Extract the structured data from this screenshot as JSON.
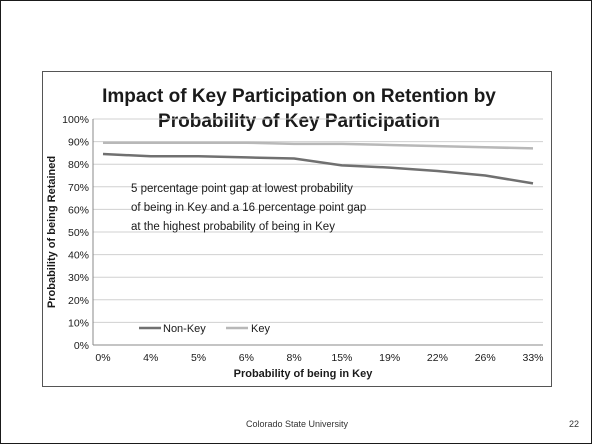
{
  "slide": {
    "footer": "Colorado State University",
    "page_number": "22"
  },
  "chart_data": {
    "type": "line",
    "title_lines": [
      "Impact of Key Participation on Retention by",
      "Probability of Key Participation"
    ],
    "xlabel": "Probability of being in Key",
    "ylabel": "Probability of being Retained",
    "x": [
      "0%",
      "4%",
      "5%",
      "6%",
      "8%",
      "15%",
      "19%",
      "22%",
      "26%",
      "33%"
    ],
    "y_ticks": [
      "0%",
      "10%",
      "20%",
      "30%",
      "40%",
      "50%",
      "60%",
      "70%",
      "80%",
      "90%",
      "100%"
    ],
    "ylim": [
      0,
      100
    ],
    "series": [
      {
        "name": "Non-Key",
        "color": "#707070",
        "values": [
          84.5,
          83.5,
          83.5,
          83,
          82.5,
          79.5,
          78.5,
          77,
          75,
          71.5
        ]
      },
      {
        "name": "Key",
        "color": "#b8b8b8",
        "values": [
          89.5,
          89.5,
          89.5,
          89.5,
          89,
          89,
          88.5,
          88,
          87.5,
          87
        ]
      }
    ],
    "annotation_lines": [
      "5 percentage point gap at lowest probability",
      "of being in Key and a 16 percentage point gap",
      "at the highest probability of being in Key"
    ],
    "legend_position": "bottom-left",
    "grid": true
  }
}
